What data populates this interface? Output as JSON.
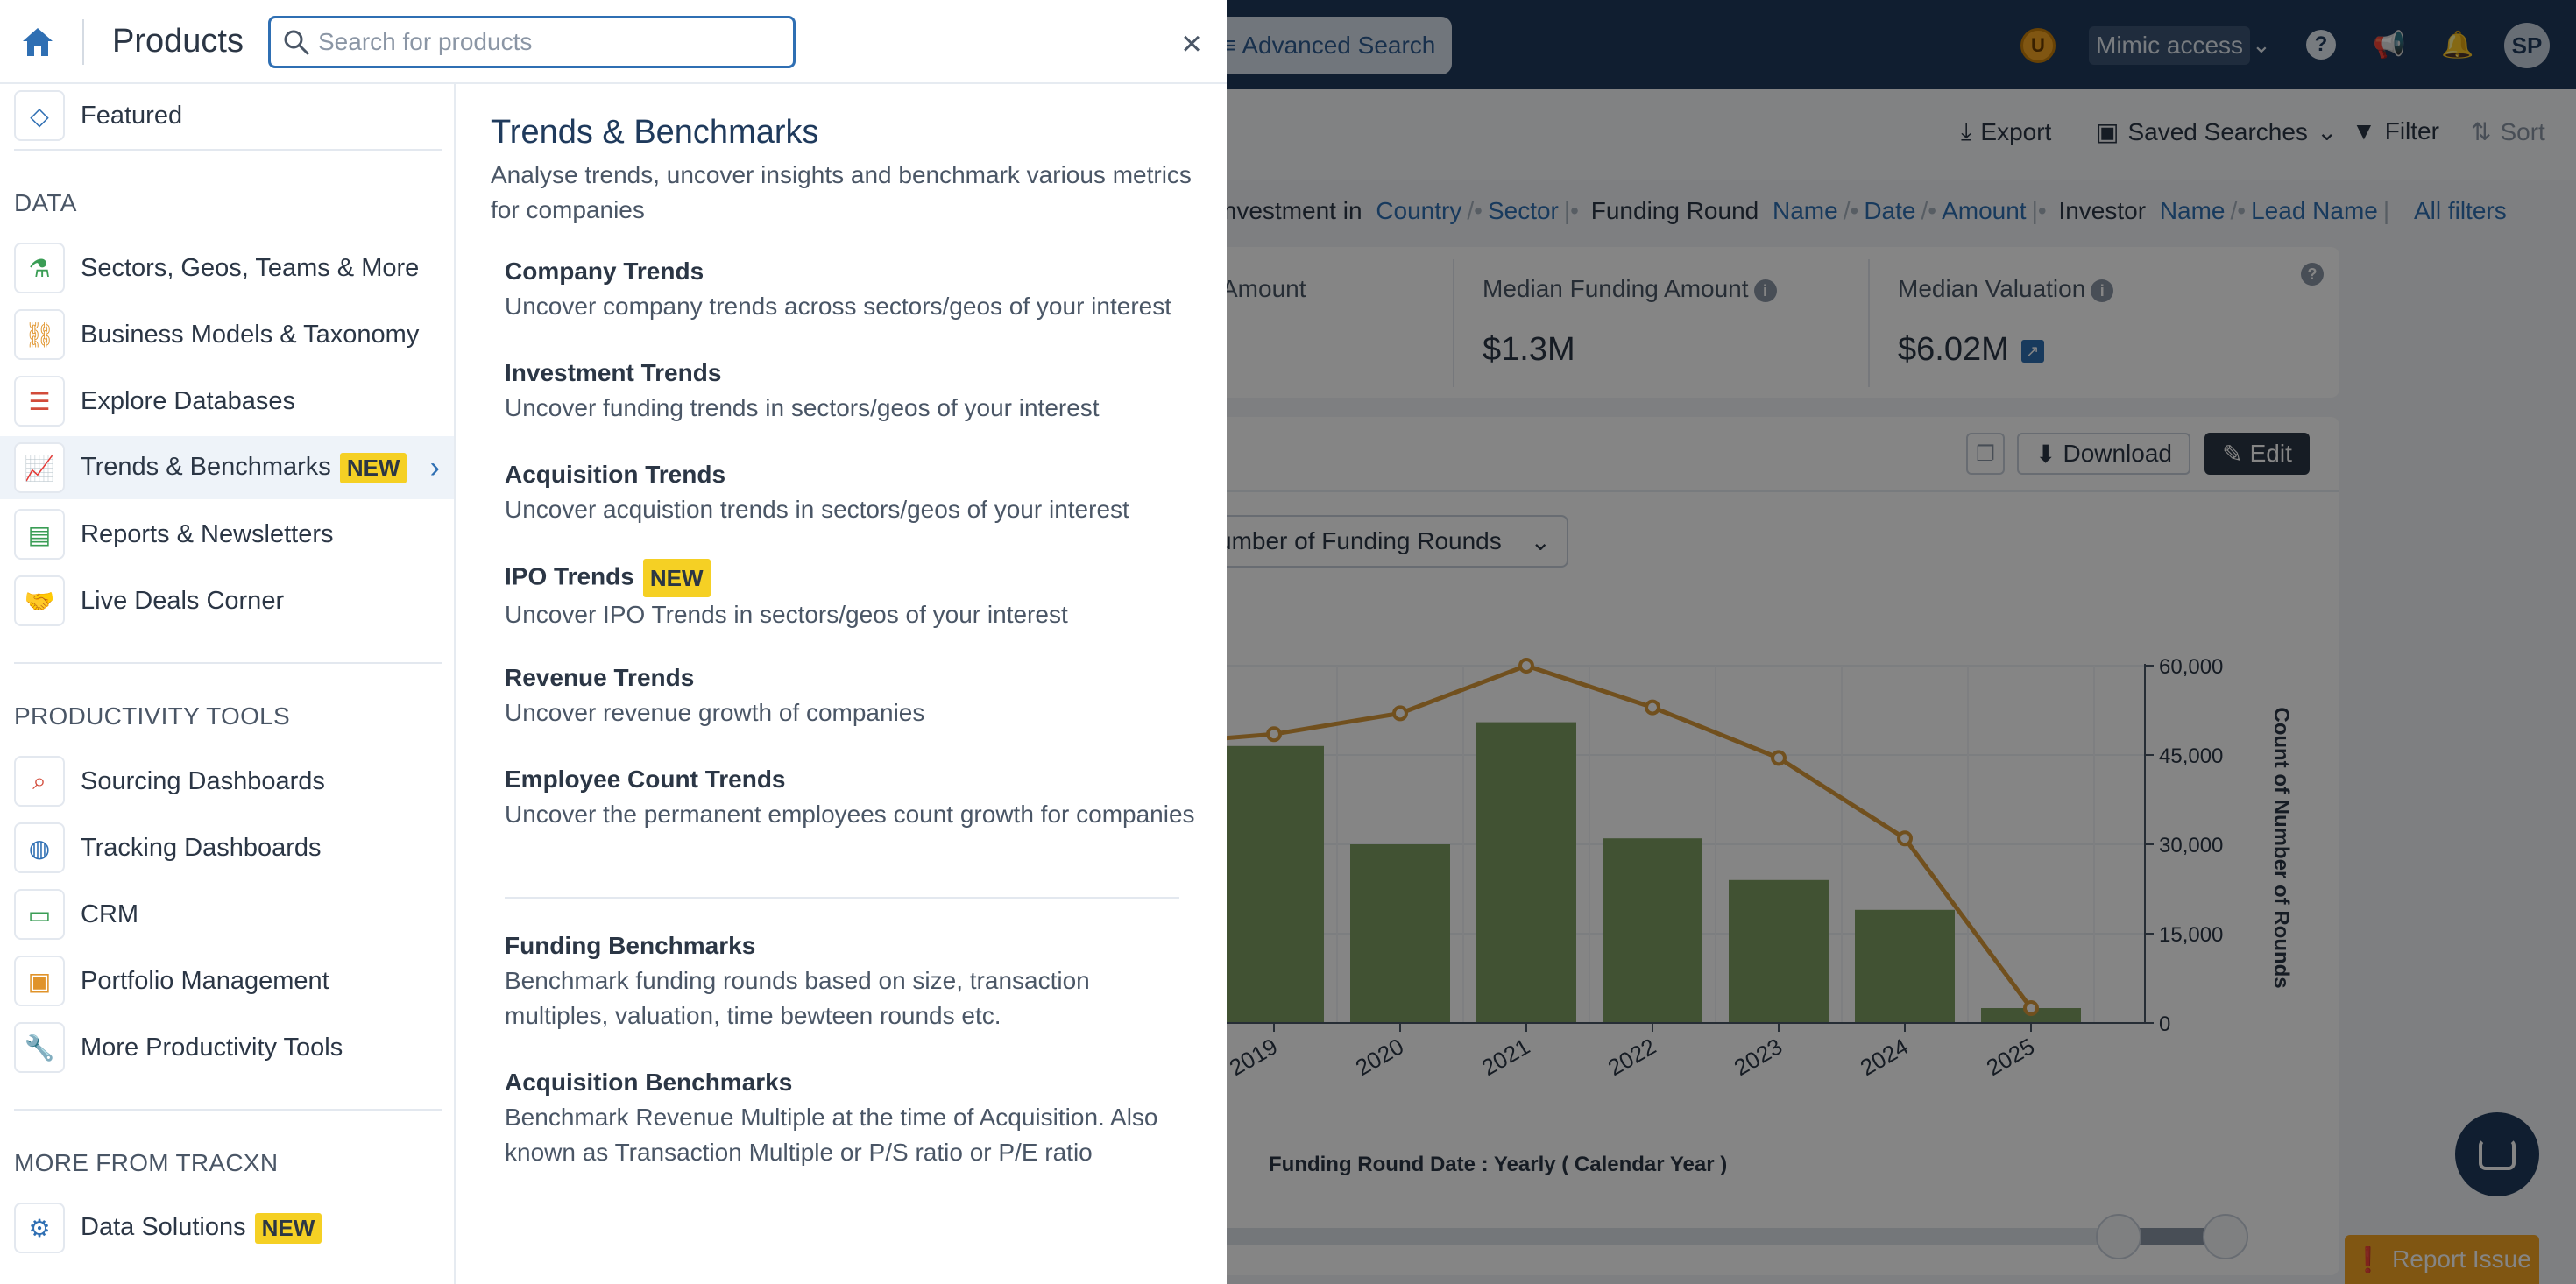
{
  "background": {
    "topbar": {
      "advanced_search": "Advanced Search",
      "user_badge": "U",
      "mimic_access": "Mimic access",
      "avatar_initials": "SP"
    },
    "toolbar": {
      "export": "Export",
      "saved_searches": "Saved Searches",
      "filter": "Filter",
      "sort": "Sort"
    },
    "filters": {
      "investment_in_label": "Investment in",
      "country": "Country",
      "sector": "Sector",
      "funding_round_label": "Funding Round",
      "name": "Name",
      "date": "Date",
      "amount": "Amount",
      "investor_label": "Investor",
      "investor_name": "Name",
      "lead_name": "Lead Name",
      "all_filters": "All filters"
    },
    "stats": {
      "amount_label_partial": "Amount",
      "median_funding_label": "Median Funding Amount",
      "median_funding_value": "$1.3M",
      "median_valuation_label": "Median Valuation",
      "median_valuation_value": "$6.02M"
    },
    "chart_actions": {
      "download": "Download",
      "edit": "Edit"
    },
    "metric_select": "umber of Funding Rounds",
    "x_axis_title": "Funding Round Date : Yearly ( Calendar Year )",
    "report_issue": "Report Issue"
  },
  "chart_data": {
    "type": "bar+line",
    "categories": [
      "2019",
      "2020",
      "2021",
      "2022",
      "2023",
      "2024",
      "2025"
    ],
    "series": [
      {
        "kind": "bar",
        "values": [
          46500,
          30000,
          50500,
          31000,
          24000,
          19000,
          2500
        ],
        "color": "#7d9e63"
      },
      {
        "kind": "line",
        "axis": "right",
        "values": [
          48500,
          52000,
          60000,
          53000,
          44500,
          31000,
          2500
        ],
        "color": "#d99a3a"
      }
    ],
    "y_right_label": "Count of Number of Rounds",
    "y_right_ticks": [
      "0",
      "15,000",
      "30,000",
      "45,000",
      "60,000"
    ],
    "y_right_range": [
      0,
      60000
    ]
  },
  "panel": {
    "title": "Products",
    "search_placeholder": "Search for products",
    "nav": {
      "featured": "Featured",
      "section_data": "DATA",
      "items_data": [
        {
          "label": "Sectors, Geos, Teams & More",
          "icon": "flask-icon"
        },
        {
          "label": "Business Models & Taxonomy",
          "icon": "hierarchy-icon"
        },
        {
          "label": "Explore Databases",
          "icon": "database-icon"
        },
        {
          "label": "Trends & Benchmarks",
          "icon": "line-chart-icon",
          "badge": "NEW"
        },
        {
          "label": "Reports & Newsletters",
          "icon": "document-icon"
        },
        {
          "label": "Live Deals Corner",
          "icon": "handshake-icon"
        }
      ],
      "section_productivity": "PRODUCTIVITY TOOLS",
      "items_productivity": [
        {
          "label": "Sourcing Dashboards",
          "icon": "search-icon"
        },
        {
          "label": "Tracking Dashboards",
          "icon": "globe-icon"
        },
        {
          "label": "CRM",
          "icon": "crm-icon"
        },
        {
          "label": "Portfolio Management",
          "icon": "briefcase-icon"
        },
        {
          "label": "More Productivity Tools",
          "icon": "wrench-icon"
        }
      ],
      "section_more": "MORE FROM TRACXN",
      "items_more": [
        {
          "label": "Data Solutions",
          "icon": "gears-icon",
          "badge": "NEW"
        }
      ]
    },
    "content": {
      "title": "Trends & Benchmarks",
      "description": "Analyse trends, uncover insights and benchmark various metrics for companies",
      "items": [
        {
          "title": "Company Trends",
          "desc": "Uncover company trends across sectors/geos of your interest"
        },
        {
          "title": "Investment Trends",
          "desc": "Uncover funding trends in sectors/geos of your interest"
        },
        {
          "title": "Acquisition Trends",
          "desc": "Uncover acquistion trends in sectors/geos of your interest"
        },
        {
          "title": "IPO Trends",
          "desc": "Uncover IPO Trends in sectors/geos of your interest",
          "badge": "NEW"
        },
        {
          "title": "Revenue Trends",
          "desc": "Uncover revenue growth of companies"
        },
        {
          "title": "Employee Count Trends",
          "desc": "Uncover the permanent employees count growth for companies"
        }
      ],
      "benchmarks": [
        {
          "title": "Funding Benchmarks",
          "desc": "Benchmark funding rounds based on size, transaction multiples, valuation, time bewteen rounds etc."
        },
        {
          "title": "Acquisition Benchmarks",
          "desc": "Benchmark Revenue Multiple at the time of Acquisition. Also known as Transaction Multiple or P/S ratio or P/E ratio"
        }
      ]
    }
  }
}
